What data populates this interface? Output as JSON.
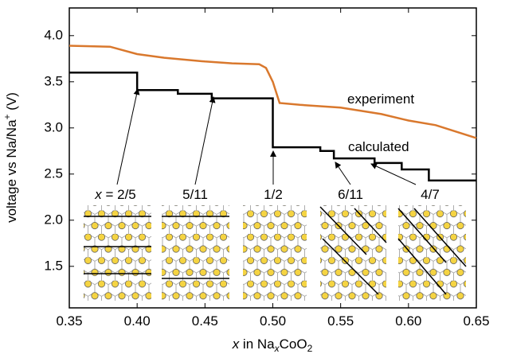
{
  "chart_data": {
    "type": "line",
    "xlabel": [
      "x",
      " in Na",
      "x",
      "CoO",
      "2"
    ],
    "ylabel": [
      "voltage vs Na/Na",
      "+",
      " (V)"
    ],
    "xlim": [
      0.35,
      0.65
    ],
    "xticks": [
      0.35,
      {
        "value": 0.4,
        "label": "0.40"
      },
      0.45,
      {
        "value": 0.5,
        "label": "0.50"
      },
      0.55,
      {
        "value": 0.6,
        "label": "0.60"
      },
      0.65
    ],
    "ylim": [
      1.05,
      4.3
    ],
    "yticks": [
      1.5,
      {
        "value": 2.0,
        "label": "2.0"
      },
      2.5,
      {
        "value": 3.0,
        "label": "3.0"
      },
      3.5,
      {
        "value": 4.0,
        "label": "4.0"
      }
    ],
    "series": [
      {
        "name": "experiment",
        "color": "#d9782d",
        "x": [
          0.35,
          0.38,
          0.4,
          0.42,
          0.45,
          0.47,
          0.49,
          0.495,
          0.5,
          0.505,
          0.52,
          0.55,
          0.58,
          0.6,
          0.62,
          0.65
        ],
        "values": [
          3.89,
          3.88,
          3.8,
          3.76,
          3.72,
          3.7,
          3.69,
          3.65,
          3.5,
          3.27,
          3.25,
          3.22,
          3.15,
          3.08,
          3.03,
          2.89
        ]
      },
      {
        "name": "calculated",
        "color": "#000000",
        "x": [
          0.35,
          0.4,
          0.4,
          0.43,
          0.43,
          0.455,
          0.455,
          0.5,
          0.5,
          0.535,
          0.535,
          0.545,
          0.545,
          0.575,
          0.575,
          0.595,
          0.595,
          0.615,
          0.615,
          0.65
        ],
        "values": [
          3.6,
          3.6,
          3.41,
          3.41,
          3.37,
          3.37,
          3.32,
          3.32,
          2.79,
          2.79,
          2.75,
          2.75,
          2.67,
          2.67,
          2.62,
          2.62,
          2.55,
          2.55,
          2.43,
          2.43
        ]
      }
    ],
    "annotations": [
      [
        "x",
        " = 2/5"
      ],
      "5/11",
      "1/2",
      "6/11",
      "4/7"
    ]
  }
}
